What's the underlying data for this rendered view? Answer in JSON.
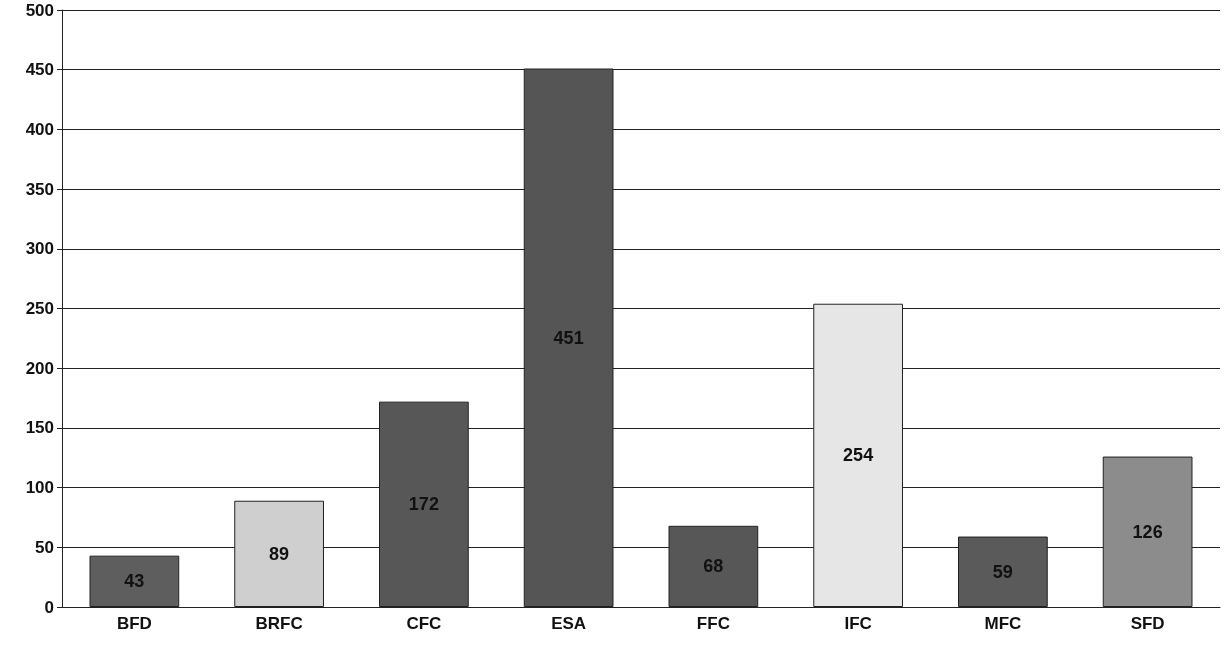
{
  "chart_data": {
    "type": "bar",
    "categories": [
      "BFD",
      "BRFC",
      "CFC",
      "ESA",
      "FFC",
      "IFC",
      "MFC",
      "SFD"
    ],
    "values": [
      43,
      89,
      172,
      451,
      68,
      254,
      59,
      126
    ],
    "colors": [
      "#5e5e5e",
      "#cfcfcf",
      "#575757",
      "#555555",
      "#575757",
      "#e6e6e6",
      "#5a5a5a",
      "#8c8c8c"
    ],
    "ylim": [
      0,
      500
    ],
    "yticks": [
      0,
      50,
      100,
      150,
      200,
      250,
      300,
      350,
      400,
      450,
      500
    ],
    "grid": "y",
    "data_labels": true
  }
}
